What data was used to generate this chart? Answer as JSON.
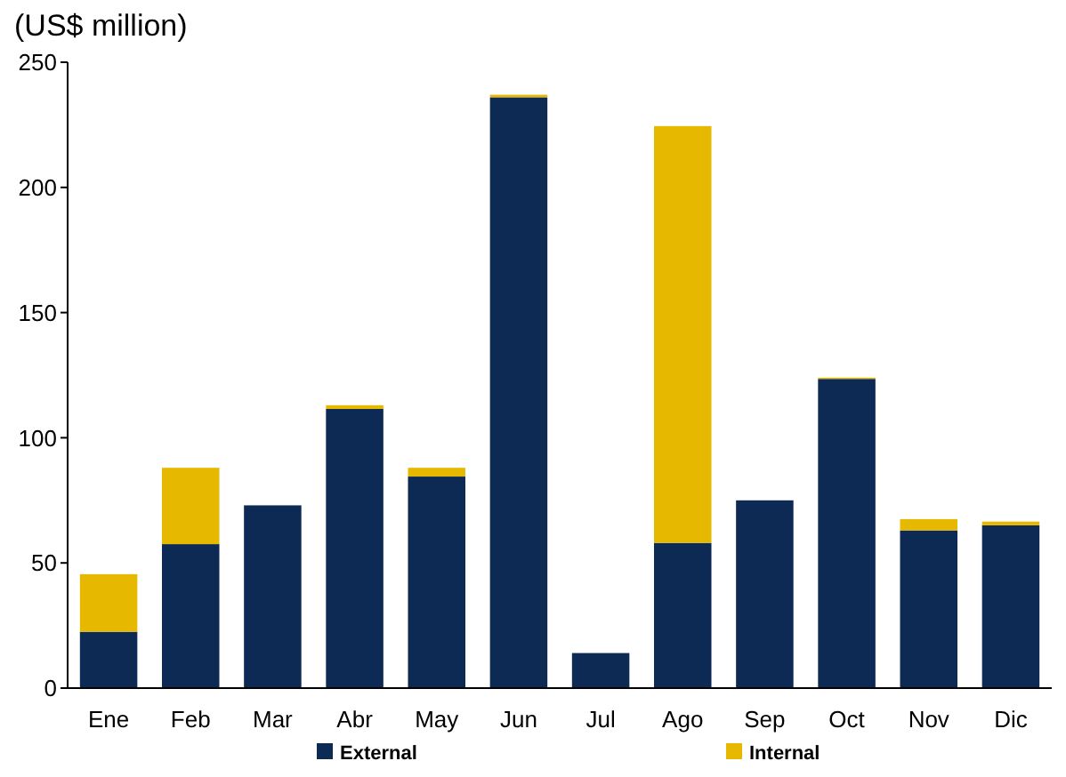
{
  "chart_data": {
    "type": "bar",
    "title": "(US$ million)",
    "categories": [
      "Ene",
      "Feb",
      "Mar",
      "Abr",
      "May",
      "Jun",
      "Jul",
      "Ago",
      "Sep",
      "Oct",
      "Nov",
      "Dic"
    ],
    "stacked": true,
    "series": [
      {
        "name": "External",
        "color": "#0d2a55",
        "values": [
          22.5,
          57.5,
          73,
          111.5,
          84.5,
          236,
          14,
          58,
          75,
          123.5,
          63,
          65
        ]
      },
      {
        "name": "Internal",
        "color": "#e6b800",
        "values": [
          23,
          30.5,
          0,
          1.5,
          3.5,
          1,
          0,
          166.5,
          0,
          0.5,
          4.5,
          1.5
        ]
      }
    ],
    "ylim": [
      0,
      250
    ],
    "yticks": [
      0,
      50,
      100,
      150,
      200,
      250
    ],
    "grid": false,
    "legend": "bottom"
  }
}
